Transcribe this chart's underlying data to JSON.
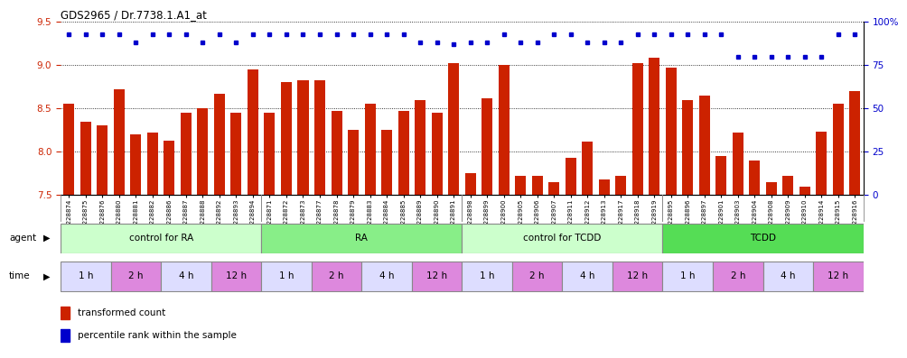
{
  "title": "GDS2965 / Dr.7738.1.A1_at",
  "samples": [
    "GSM228874",
    "GSM228875",
    "GSM228876",
    "GSM228880",
    "GSM228881",
    "GSM228882",
    "GSM228886",
    "GSM228887",
    "GSM228888",
    "GSM228892",
    "GSM228893",
    "GSM228894",
    "GSM228871",
    "GSM228872",
    "GSM228873",
    "GSM228877",
    "GSM228878",
    "GSM228879",
    "GSM228883",
    "GSM228884",
    "GSM228885",
    "GSM228889",
    "GSM228890",
    "GSM228891",
    "GSM228898",
    "GSM228899",
    "GSM228900",
    "GSM228905",
    "GSM228906",
    "GSM228907",
    "GSM228911",
    "GSM228912",
    "GSM228913",
    "GSM228917",
    "GSM228918",
    "GSM228919",
    "GSM228895",
    "GSM228896",
    "GSM228897",
    "GSM228901",
    "GSM228903",
    "GSM228904",
    "GSM228908",
    "GSM228909",
    "GSM228910",
    "GSM228914",
    "GSM228915",
    "GSM228916"
  ],
  "bar_values": [
    8.55,
    8.35,
    8.3,
    8.72,
    8.2,
    8.22,
    8.13,
    8.45,
    8.5,
    8.67,
    8.45,
    8.95,
    8.45,
    8.8,
    8.82,
    8.82,
    8.47,
    8.25,
    8.55,
    8.25,
    8.47,
    8.6,
    8.45,
    9.02,
    7.75,
    8.62,
    9.0,
    7.72,
    7.72,
    7.65,
    7.93,
    8.12,
    7.68,
    7.72,
    9.02,
    9.08,
    8.97,
    8.6,
    8.65,
    7.95,
    8.22,
    7.9,
    7.65,
    7.72,
    7.6,
    8.23,
    8.55,
    8.7
  ],
  "percentile_values": [
    93,
    93,
    93,
    93,
    88,
    93,
    93,
    93,
    88,
    93,
    88,
    93,
    93,
    93,
    93,
    93,
    93,
    93,
    93,
    93,
    93,
    88,
    88,
    87,
    88,
    88,
    93,
    88,
    88,
    93,
    93,
    88,
    88,
    88,
    93,
    93,
    93,
    93,
    93,
    93,
    80,
    80,
    80,
    80,
    80,
    80,
    93,
    93
  ],
  "ylim_left": [
    7.5,
    9.5
  ],
  "ylim_right": [
    0,
    100
  ],
  "yticks_left": [
    7.5,
    8.0,
    8.5,
    9.0,
    9.5
  ],
  "yticks_right": [
    0,
    25,
    50,
    75,
    100
  ],
  "bar_color": "#cc2200",
  "dot_color": "#0000cc",
  "agent_groups": [
    {
      "label": "control for RA",
      "start": 0,
      "end": 12,
      "color": "#ccffcc"
    },
    {
      "label": "RA",
      "start": 12,
      "end": 24,
      "color": "#88ee88"
    },
    {
      "label": "control for TCDD",
      "start": 24,
      "end": 36,
      "color": "#ccffcc"
    },
    {
      "label": "TCDD",
      "start": 36,
      "end": 48,
      "color": "#55dd55"
    }
  ],
  "time_groups": [
    {
      "label": "1 h",
      "start": 0,
      "end": 3,
      "color": "#ddddff"
    },
    {
      "label": "2 h",
      "start": 3,
      "end": 6,
      "color": "#dd88dd"
    },
    {
      "label": "4 h",
      "start": 6,
      "end": 9,
      "color": "#ddddff"
    },
    {
      "label": "12 h",
      "start": 9,
      "end": 12,
      "color": "#dd88dd"
    },
    {
      "label": "1 h",
      "start": 12,
      "end": 15,
      "color": "#ddddff"
    },
    {
      "label": "2 h",
      "start": 15,
      "end": 18,
      "color": "#dd88dd"
    },
    {
      "label": "4 h",
      "start": 18,
      "end": 21,
      "color": "#ddddff"
    },
    {
      "label": "12 h",
      "start": 21,
      "end": 24,
      "color": "#dd88dd"
    },
    {
      "label": "1 h",
      "start": 24,
      "end": 27,
      "color": "#ddddff"
    },
    {
      "label": "2 h",
      "start": 27,
      "end": 30,
      "color": "#dd88dd"
    },
    {
      "label": "4 h",
      "start": 30,
      "end": 33,
      "color": "#ddddff"
    },
    {
      "label": "12 h",
      "start": 33,
      "end": 36,
      "color": "#dd88dd"
    },
    {
      "label": "1 h",
      "start": 36,
      "end": 39,
      "color": "#ddddff"
    },
    {
      "label": "2 h",
      "start": 39,
      "end": 42,
      "color": "#dd88dd"
    },
    {
      "label": "4 h",
      "start": 42,
      "end": 45,
      "color": "#ddddff"
    },
    {
      "label": "12 h",
      "start": 45,
      "end": 48,
      "color": "#dd88dd"
    }
  ],
  "legend_items": [
    {
      "color": "#cc2200",
      "label": "transformed count"
    },
    {
      "color": "#0000cc",
      "label": "percentile rank within the sample"
    }
  ],
  "left_axis_color": "#cc2200",
  "right_axis_color": "#0000cc",
  "xtick_bg": "#cccccc",
  "fig_width": 10.38,
  "fig_height": 3.84
}
